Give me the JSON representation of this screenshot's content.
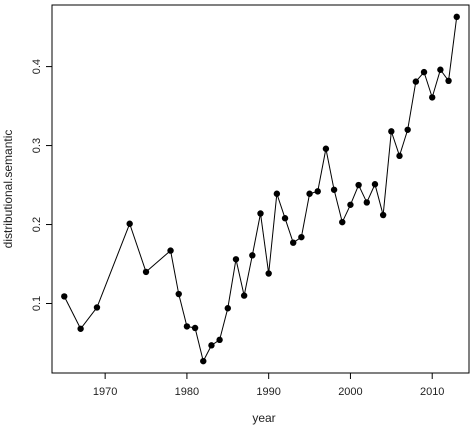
{
  "chart_data": {
    "type": "line",
    "title": "",
    "xlabel": "year",
    "ylabel": "distributional.semantic",
    "xlim": [
      1963.5,
      2014.5
    ],
    "ylim": [
      0.012,
      0.478
    ],
    "x_ticks": [
      1970,
      1980,
      1990,
      2000,
      2010
    ],
    "y_ticks": [
      0.1,
      0.2,
      0.3,
      0.4
    ],
    "x_tick_labels": [
      "1970",
      "1980",
      "1990",
      "2000",
      "2010"
    ],
    "y_tick_labels": [
      "0.1",
      "0.2",
      "0.3",
      "0.4"
    ],
    "grid": false,
    "legend": "none",
    "series": [
      {
        "marker": "filled-circle",
        "color": "#000000",
        "x": [
          1965,
          1967,
          1969,
          1973,
          1975,
          1978,
          1979,
          1980,
          1981,
          1982,
          1983,
          1984,
          1985,
          1986,
          1987,
          1988,
          1989,
          1990,
          1991,
          1992,
          1993,
          1994,
          1995,
          1996,
          1997,
          1998,
          1999,
          2000,
          2001,
          2002,
          2003,
          2004,
          2005,
          2006,
          2007,
          2008,
          2009,
          2010,
          2011,
          2012,
          2013
        ],
        "y": [
          0.109,
          0.068,
          0.095,
          0.201,
          0.14,
          0.167,
          0.112,
          0.071,
          0.069,
          0.027,
          0.047,
          0.054,
          0.094,
          0.156,
          0.11,
          0.161,
          0.214,
          0.138,
          0.239,
          0.208,
          0.177,
          0.184,
          0.239,
          0.242,
          0.296,
          0.244,
          0.203,
          0.225,
          0.25,
          0.228,
          0.251,
          0.212,
          0.318,
          0.287,
          0.32,
          0.381,
          0.393,
          0.361,
          0.396,
          0.382,
          0.463
        ]
      }
    ]
  }
}
